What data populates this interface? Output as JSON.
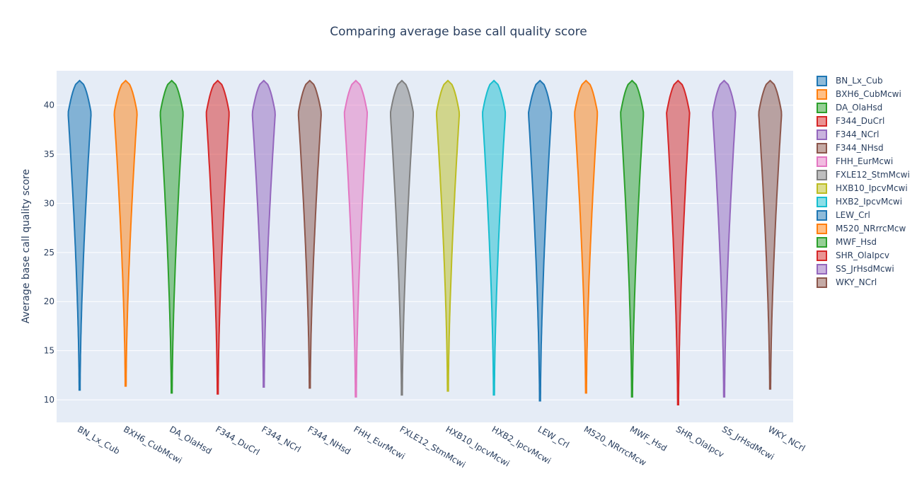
{
  "chart_data": {
    "type": "violin",
    "title": "Comparing average base call quality score",
    "xlabel": "",
    "ylabel": "Average base call quality score",
    "ylim": [
      7.7,
      43.5
    ],
    "yticks": [
      10,
      15,
      20,
      25,
      30,
      35,
      40
    ],
    "grid": true,
    "legend_position": "right",
    "categories": [
      "BN_Lx_Cub",
      "BXH6_CubMcwi",
      "DA_OlaHsd",
      "F344_DuCrl",
      "F344_NCrl",
      "F344_NHsd",
      "FHH_EurMcwi",
      "FXLE12_StmMcwi",
      "HXB10_IpcvMcwi",
      "HXB2_IpcvMcwi",
      "LEW_Crl",
      "M520_NRrrcMcw",
      "MWF_Hsd",
      "SHR_OlaIpcv",
      "SS_JrHsdMcwi",
      "WKY_NCrl"
    ],
    "series": [
      {
        "name": "BN_Lx_Cub",
        "color": "#1f77b4",
        "min": 11.0,
        "max": 42.5
      },
      {
        "name": "BXH6_CubMcwi",
        "color": "#ff7f0e",
        "min": 11.4,
        "max": 42.5
      },
      {
        "name": "DA_OlaHsd",
        "color": "#2ca02c",
        "min": 10.7,
        "max": 42.5
      },
      {
        "name": "F344_DuCrl",
        "color": "#d62728",
        "min": 10.6,
        "max": 42.5
      },
      {
        "name": "F344_NCrl",
        "color": "#9467bd",
        "min": 11.3,
        "max": 42.5
      },
      {
        "name": "F344_NHsd",
        "color": "#8c564b",
        "min": 11.2,
        "max": 42.5
      },
      {
        "name": "FHH_EurMcwi",
        "color": "#e377c2",
        "min": 10.3,
        "max": 42.5
      },
      {
        "name": "FXLE12_StmMcwi",
        "color": "#7f7f7f",
        "min": 10.5,
        "max": 42.5
      },
      {
        "name": "HXB10_IpcvMcwi",
        "color": "#bcbd22",
        "min": 10.9,
        "max": 42.5
      },
      {
        "name": "HXB2_IpcvMcwi",
        "color": "#17becf",
        "min": 10.5,
        "max": 42.5
      },
      {
        "name": "LEW_Crl",
        "color": "#1f77b4",
        "min": 9.9,
        "max": 42.5
      },
      {
        "name": "M520_NRrrcMcw",
        "color": "#ff7f0e",
        "min": 10.7,
        "max": 42.5
      },
      {
        "name": "MWF_Hsd",
        "color": "#2ca02c",
        "min": 10.3,
        "max": 42.5
      },
      {
        "name": "SHR_OlaIpcv",
        "color": "#d62728",
        "min": 9.5,
        "max": 42.5
      },
      {
        "name": "SS_JrHsdMcwi",
        "color": "#9467bd",
        "min": 10.3,
        "max": 42.5
      },
      {
        "name": "WKY_NCrl",
        "color": "#8c564b",
        "min": 11.1,
        "max": 42.5
      }
    ]
  }
}
